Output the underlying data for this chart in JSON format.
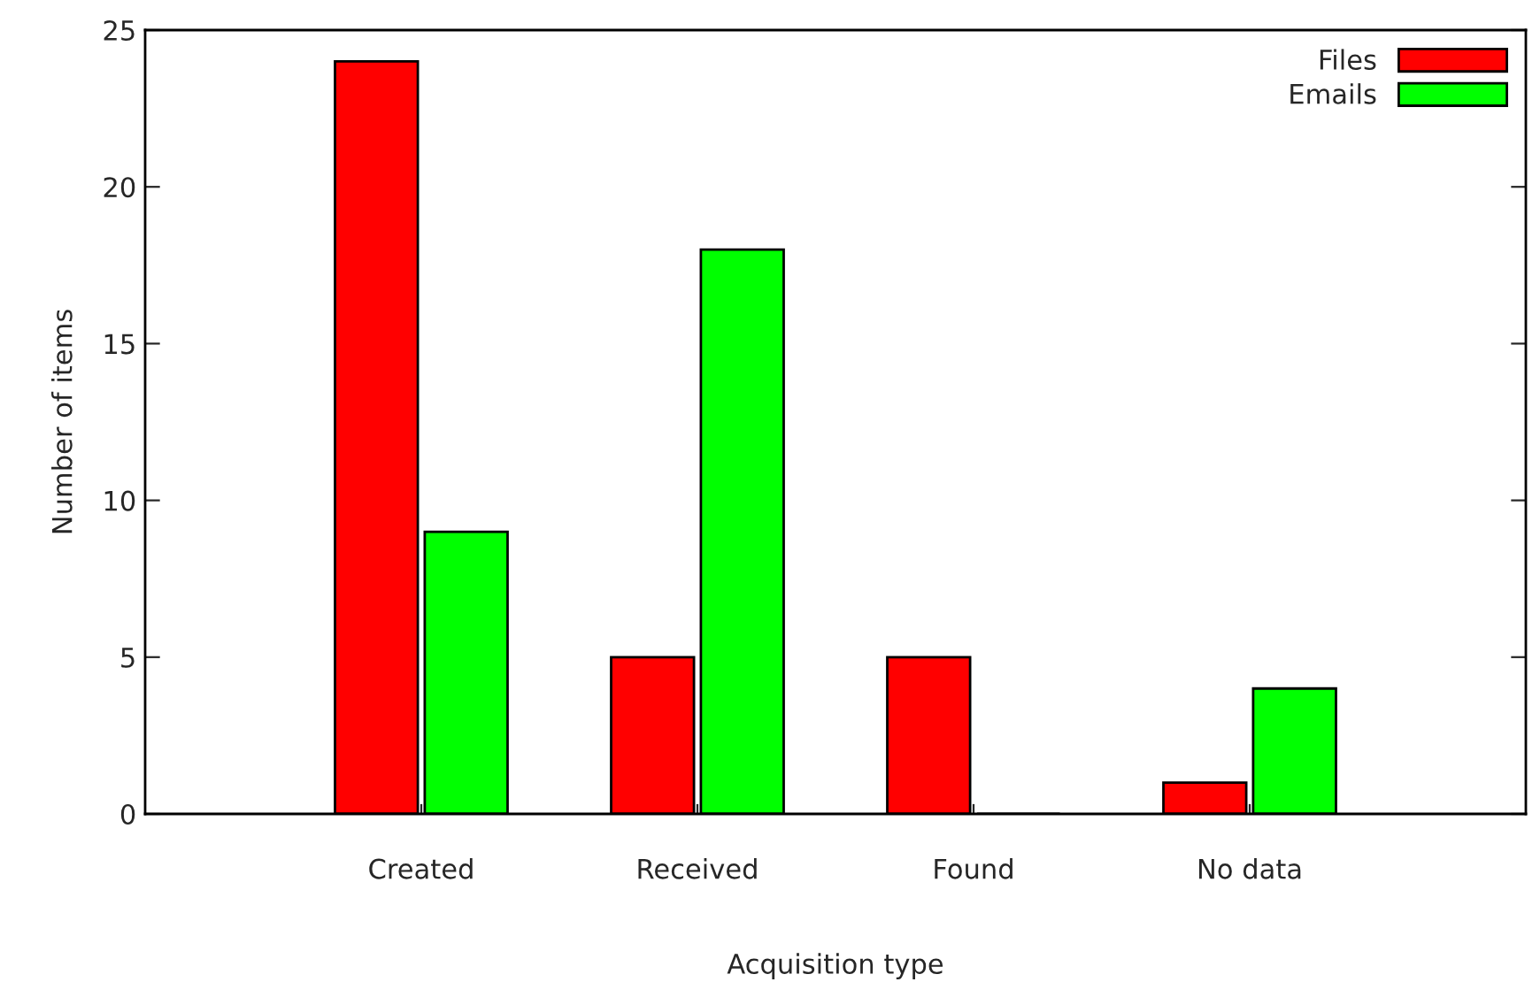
{
  "chart_data": {
    "type": "bar",
    "xlabel": "Acquisition type",
    "ylabel": "Number of items",
    "categories": [
      "Created",
      "Received",
      "Found",
      "No data"
    ],
    "series": [
      {
        "name": "Files",
        "color": "#ff0000",
        "values": [
          24,
          5,
          5,
          1
        ]
      },
      {
        "name": "Emails",
        "color": "#00ff00",
        "values": [
          9,
          18,
          0,
          4
        ]
      }
    ],
    "ylim": [
      0,
      25
    ],
    "yticks": [
      0,
      5,
      10,
      15,
      20,
      25
    ],
    "grid": false,
    "legend": "top right"
  }
}
